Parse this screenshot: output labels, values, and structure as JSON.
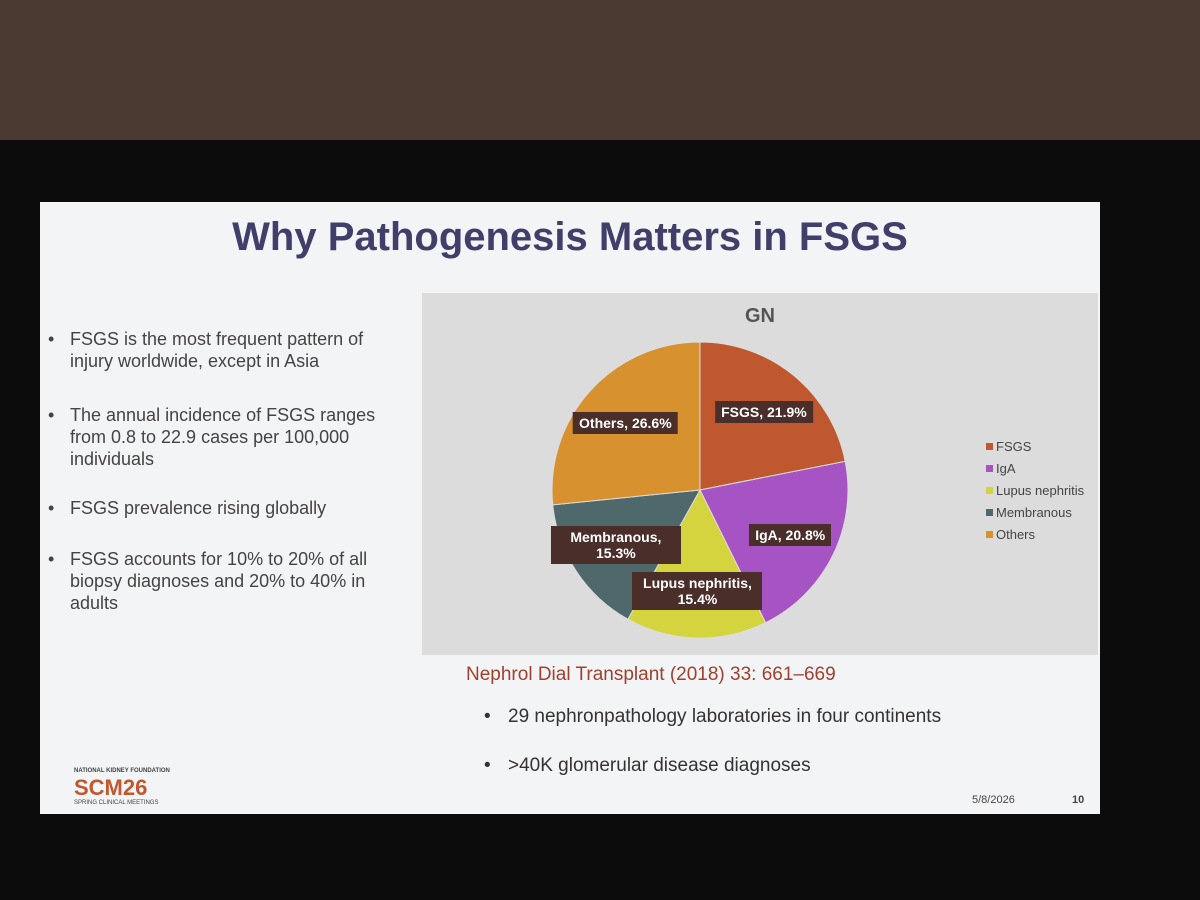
{
  "title": "Why Pathogenesis Matters in FSGS",
  "bullets": [
    "FSGS is the most frequent pattern of injury worldwide, except in Asia",
    "The annual incidence of FSGS ranges from 0.8 to 22.9 cases per 100,000 individuals",
    "FSGS prevalence rising globally",
    "FSGS accounts for 10% to 20% of all biopsy diagnoses and 20% to 40% in adults"
  ],
  "chart_data": {
    "type": "pie",
    "title": "GN",
    "categories": [
      "FSGS",
      "IgA",
      "Lupus nephritis",
      "Membranous",
      "Others"
    ],
    "values": [
      21.9,
      20.8,
      15.4,
      15.3,
      26.6
    ],
    "value_labels": [
      "FSGS, 21.9%",
      "IgA, 20.8%",
      "Lupus nephritis, 15.4%",
      "Membranous, 15.3%",
      "Others, 26.6%"
    ],
    "colors": [
      "#c0582f",
      "#a653c4",
      "#d3d43e",
      "#4e686b",
      "#d8912f"
    ],
    "legend": "right"
  },
  "citation": "Nephrol Dial Transplant (2018) 33: 661–669",
  "points": [
    "29 nephronpathology laboratories in four continents",
    ">40K glomerular disease diagnoses"
  ],
  "footer": {
    "org": "NATIONAL KIDNEY FOUNDATION",
    "logo": "SCM26",
    "sub": "SPRING CLINICAL MEETINGS",
    "date": "5/8/2026",
    "page": 10
  }
}
